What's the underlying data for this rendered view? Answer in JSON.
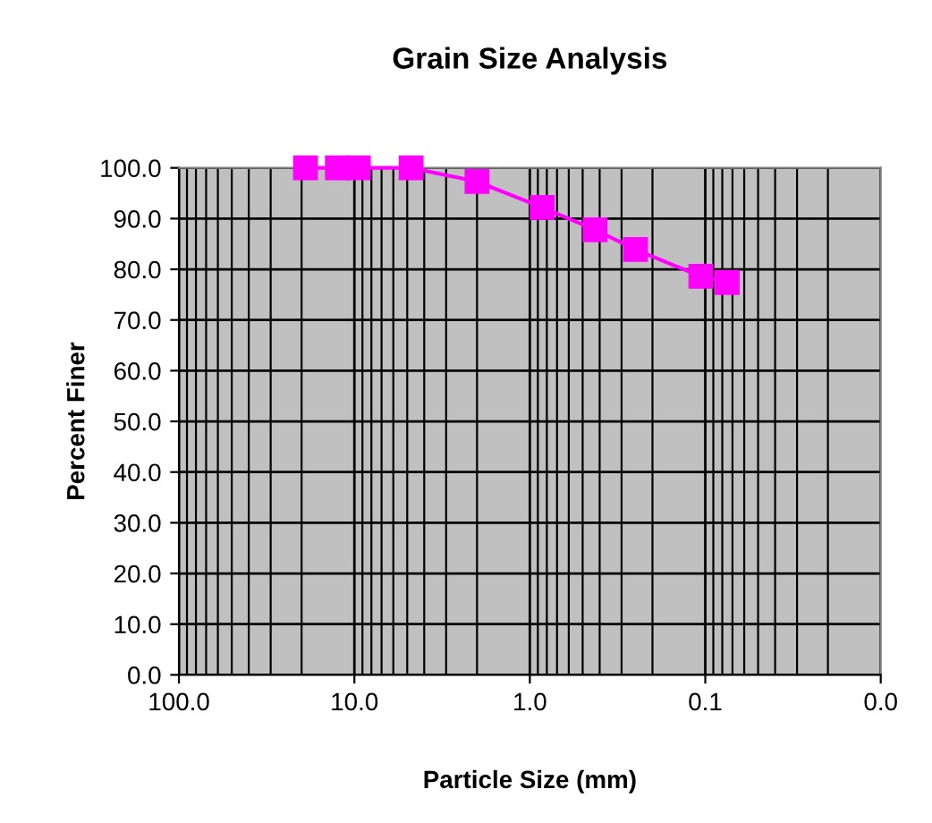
{
  "chart_data": {
    "type": "line",
    "title": "Grain Size Analysis",
    "xlabel": "Particle Size (mm)",
    "ylabel": "Percent Finer",
    "x": [
      19,
      12.5,
      9.5,
      4.75,
      2.0,
      0.85,
      0.425,
      0.25,
      0.106,
      0.075
    ],
    "series": [
      {
        "color": "#ff00ff",
        "values": [
          100,
          100,
          100,
          100,
          97.3,
          92.2,
          87.8,
          83.9,
          78.6,
          77.4
        ]
      }
    ],
    "log": "x",
    "xlim": [
      100,
      0.01
    ],
    "xticks": [
      {
        "value": 100,
        "label": "100.0"
      },
      {
        "value": 10,
        "label": "10.0"
      },
      {
        "value": 1,
        "label": "1.0"
      },
      {
        "value": 0.1,
        "label": "0.1"
      },
      {
        "value": 0.01,
        "label": "0.0"
      }
    ],
    "ylim": [
      0,
      100
    ],
    "yticks": [
      {
        "value": 0,
        "label": "0.0"
      },
      {
        "value": 10,
        "label": "10.0"
      },
      {
        "value": 20,
        "label": "20.0"
      },
      {
        "value": 30,
        "label": "30.0"
      },
      {
        "value": 40,
        "label": "40.0"
      },
      {
        "value": 50,
        "label": "50.0"
      },
      {
        "value": 60,
        "label": "60.0"
      },
      {
        "value": 70,
        "label": "70.0"
      },
      {
        "value": 80,
        "label": "80.0"
      },
      {
        "value": 90,
        "label": "90.0"
      },
      {
        "value": 100,
        "label": "100.0"
      }
    ],
    "grid": true,
    "marker": "square",
    "line_style": "solid"
  }
}
